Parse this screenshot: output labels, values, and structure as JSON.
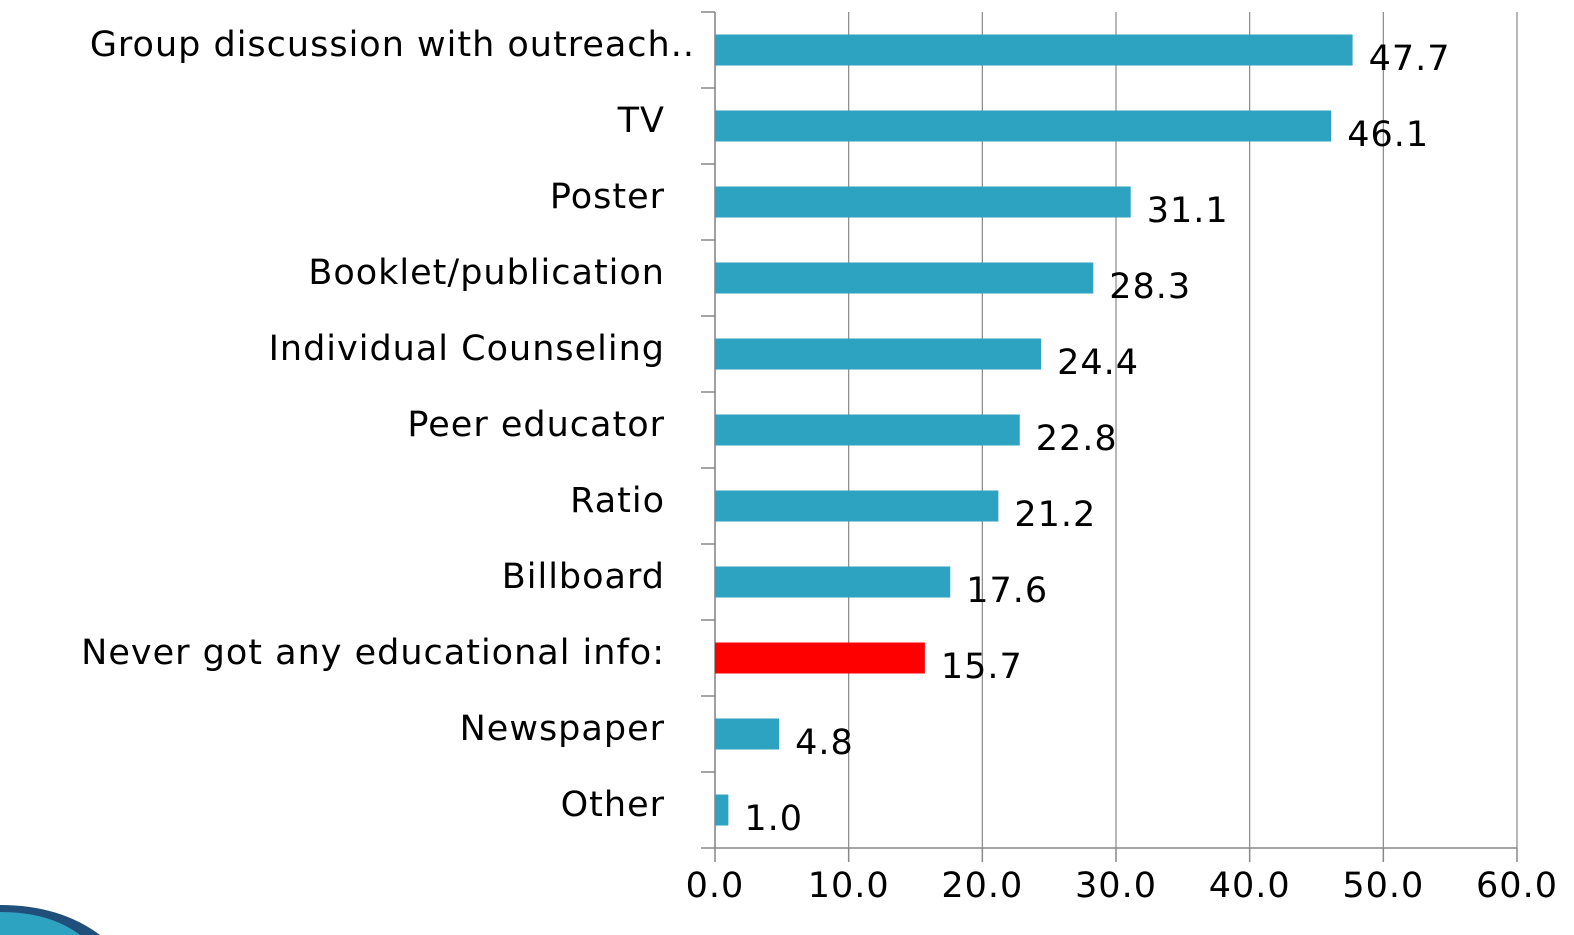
{
  "chart_data": {
    "type": "barh",
    "categories": [
      "Group discussion with outreach..",
      "TV",
      "Poster",
      "Booklet/publication",
      "Individual Counseling",
      "Peer educator",
      "Ratio",
      "Billboard",
      "Never got any educational info:",
      "Newspaper",
      "Other"
    ],
    "values": [
      47.7,
      46.1,
      31.1,
      28.3,
      24.4,
      22.8,
      21.2,
      17.6,
      15.7,
      4.8,
      1.0
    ],
    "value_labels": [
      "47.7",
      "46.1",
      "31.1",
      "28.3",
      "24.4",
      "22.8",
      "21.2",
      "17.6",
      "15.7",
      "4.8",
      "1.0"
    ],
    "colors": [
      "#2ea3c1",
      "#2ea3c1",
      "#2ea3c1",
      "#2ea3c1",
      "#2ea3c1",
      "#2ea3c1",
      "#2ea3c1",
      "#2ea3c1",
      "#ff0000",
      "#2ea3c1",
      "#2ea3c1"
    ],
    "xlim": [
      0,
      60
    ],
    "xticks": [
      {
        "value": 0,
        "label": "0.0"
      },
      {
        "value": 10,
        "label": "10.0"
      },
      {
        "value": 20,
        "label": "20.0"
      },
      {
        "value": 30,
        "label": "30.0"
      },
      {
        "value": 40,
        "label": "40.0"
      },
      {
        "value": 50,
        "label": "50.0"
      },
      {
        "value": 60,
        "label": "60.0"
      }
    ],
    "grid": true
  }
}
